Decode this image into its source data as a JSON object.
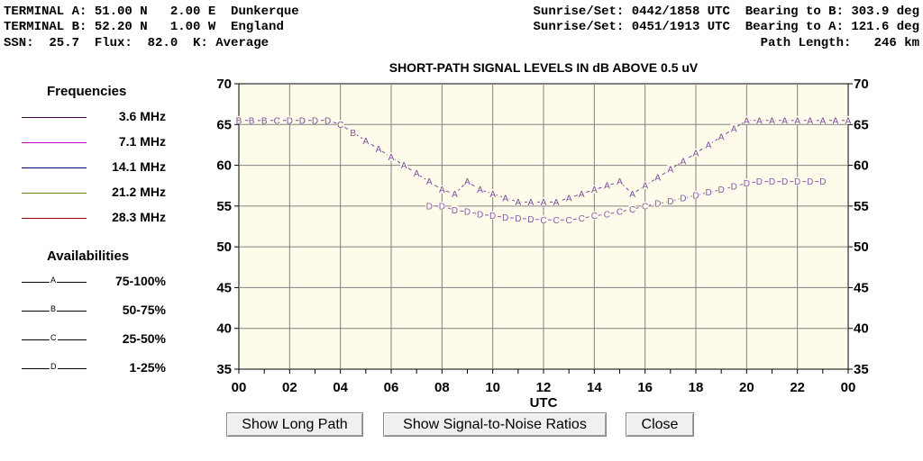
{
  "header": {
    "line1_left": "TERMINAL A: 51.00 N   2.00 E  Dunkerque",
    "line2_left": "TERMINAL B: 52.20 N   1.00 W  England",
    "line3_left": "SSN:  25.7  Flux:  82.0  K: Average",
    "line1_right": "Sunrise/Set: 0442/1858 UTC  Bearing to B: 303.9 deg",
    "line2_right": "Sunrise/Set: 0451/1913 UTC  Bearing to A: 121.6 deg",
    "line3_right": "Path Length:   246 km"
  },
  "legend": {
    "frequencies_title": "Frequencies",
    "frequencies": [
      {
        "label": "3.6 MHz",
        "color": "#3a0a3a"
      },
      {
        "label": "7.1 MHz",
        "color": "#c000c0"
      },
      {
        "label": "14.1 MHz",
        "color": "#00007a"
      },
      {
        "label": "21.2 MHz",
        "color": "#7a7a00"
      },
      {
        "label": "28.3 MHz",
        "color": "#9a0000"
      }
    ],
    "availabilities_title": "Availabilities",
    "availabilities": [
      {
        "mark": "A",
        "label": "75-100%"
      },
      {
        "mark": "B",
        "label": "50-75%"
      },
      {
        "mark": "C",
        "label": "25-50%"
      },
      {
        "mark": "D",
        "label": "1-25%"
      }
    ]
  },
  "buttons": {
    "long_path": "Show Long Path",
    "snr": "Show Signal-to-Noise Ratios",
    "close": "Close"
  },
  "chart_data": {
    "type": "line",
    "title": "SHORT-PATH SIGNAL LEVELS IN dB ABOVE 0.5 uV",
    "xlabel": "UTC",
    "ylabel": "",
    "xlim": [
      0,
      24
    ],
    "ylim": [
      35,
      70
    ],
    "xticks": [
      "00",
      "02",
      "04",
      "06",
      "08",
      "10",
      "12",
      "14",
      "16",
      "18",
      "20",
      "22",
      "00"
    ],
    "yticks": [
      35,
      40,
      45,
      50,
      55,
      60,
      65,
      70
    ],
    "grid": true,
    "plot_bg": "#fffbea",
    "series": [
      {
        "name": "3.6 MHz",
        "color": "#7a4a9a",
        "points": [
          [
            0,
            65.5,
            "B"
          ],
          [
            0.5,
            65.5,
            "B"
          ],
          [
            1,
            65.5,
            "B"
          ],
          [
            1.5,
            65.5,
            "C"
          ],
          [
            2,
            65.5,
            "D"
          ],
          [
            2.5,
            65.5,
            "D"
          ],
          [
            3,
            65.5,
            "D"
          ],
          [
            3.5,
            65.5,
            "D"
          ],
          [
            4,
            65,
            "C"
          ],
          [
            4.5,
            64,
            "B"
          ],
          [
            5,
            63,
            "A"
          ],
          [
            5.5,
            62,
            "A"
          ],
          [
            6,
            61,
            "A"
          ],
          [
            6.5,
            60,
            "A"
          ],
          [
            7,
            59,
            "A"
          ],
          [
            7.5,
            58,
            "A"
          ],
          [
            8,
            57,
            "A"
          ],
          [
            8.5,
            56.5,
            "A"
          ],
          [
            9,
            58,
            "A"
          ],
          [
            9.5,
            57,
            "A"
          ],
          [
            10,
            56.5,
            "A"
          ],
          [
            10.5,
            56,
            "A"
          ],
          [
            11,
            55.5,
            "A"
          ],
          [
            11.5,
            55.5,
            "A"
          ],
          [
            12,
            55.5,
            "A"
          ],
          [
            12.5,
            55.5,
            "A"
          ],
          [
            13,
            56,
            "A"
          ],
          [
            13.5,
            56.5,
            "A"
          ],
          [
            14,
            57,
            "A"
          ],
          [
            14.5,
            57.5,
            "A"
          ],
          [
            15,
            58,
            "A"
          ],
          [
            15.5,
            56.5,
            "A"
          ],
          [
            16,
            57.5,
            "A"
          ],
          [
            16.5,
            58.5,
            "A"
          ],
          [
            17,
            59.5,
            "A"
          ],
          [
            17.5,
            60.5,
            "A"
          ],
          [
            18,
            61.5,
            "A"
          ],
          [
            18.5,
            62.5,
            "A"
          ],
          [
            19,
            63.5,
            "A"
          ],
          [
            19.5,
            64.5,
            "A"
          ],
          [
            20,
            65.5,
            "A"
          ],
          [
            20.5,
            65.5,
            "A"
          ],
          [
            21,
            65.5,
            "A"
          ],
          [
            21.5,
            65.5,
            "A"
          ],
          [
            22,
            65.5,
            "A"
          ],
          [
            22.5,
            65.5,
            "A"
          ],
          [
            23,
            65.5,
            "A"
          ],
          [
            23.5,
            65.5,
            "A"
          ],
          [
            24,
            65.5,
            "A"
          ]
        ]
      },
      {
        "name": "7.1 MHz",
        "color": "#8a5aaa",
        "points": [
          [
            7.5,
            55,
            "D"
          ],
          [
            8,
            55,
            "D"
          ],
          [
            8.5,
            54.5,
            "D"
          ],
          [
            9,
            54.3,
            "D"
          ],
          [
            9.5,
            54,
            "D"
          ],
          [
            10,
            53.8,
            "D"
          ],
          [
            10.5,
            53.6,
            "D"
          ],
          [
            11,
            53.5,
            "D"
          ],
          [
            11.5,
            53.4,
            "D"
          ],
          [
            12,
            53.3,
            "C"
          ],
          [
            12.5,
            53.3,
            "C"
          ],
          [
            13,
            53.3,
            "C"
          ],
          [
            13.5,
            53.5,
            "C"
          ],
          [
            14,
            53.8,
            "C"
          ],
          [
            14.5,
            54,
            "C"
          ],
          [
            15,
            54.3,
            "C"
          ],
          [
            15.5,
            54.6,
            "C"
          ],
          [
            16,
            55,
            "C"
          ],
          [
            16.5,
            55.3,
            "D"
          ],
          [
            17,
            55.6,
            "D"
          ],
          [
            17.5,
            56,
            "D"
          ],
          [
            18,
            56.3,
            "D"
          ],
          [
            18.5,
            56.7,
            "D"
          ],
          [
            19,
            57,
            "D"
          ],
          [
            19.5,
            57.4,
            "D"
          ],
          [
            20,
            57.8,
            "D"
          ],
          [
            20.5,
            58,
            "D"
          ],
          [
            21,
            58,
            "D"
          ],
          [
            21.5,
            58,
            "D"
          ],
          [
            22,
            58,
            "D"
          ],
          [
            22.5,
            58,
            "D"
          ],
          [
            23,
            58,
            "D"
          ]
        ]
      }
    ]
  }
}
